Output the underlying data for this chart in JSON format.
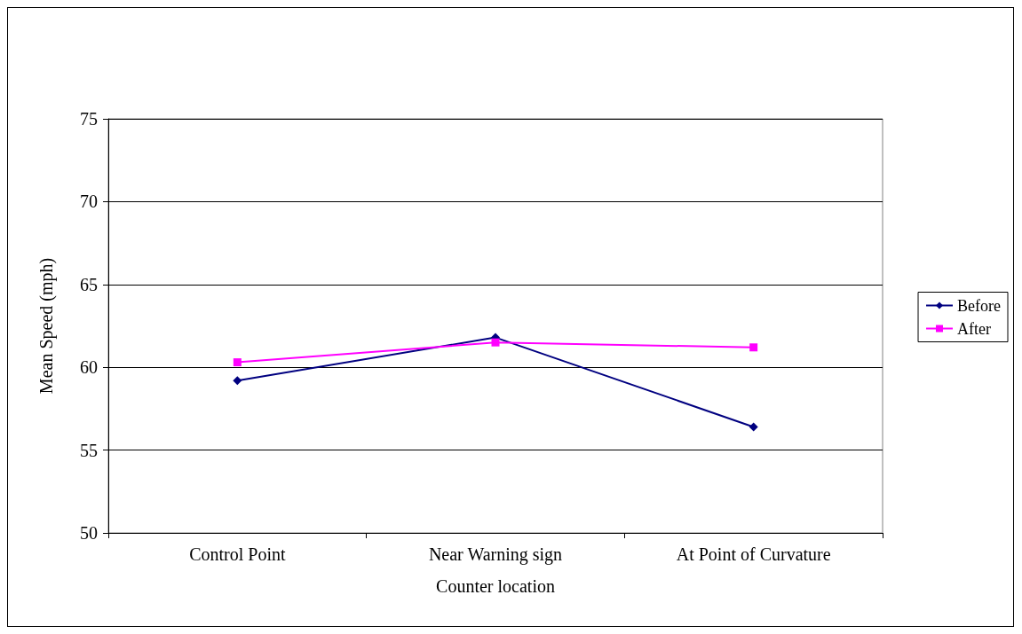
{
  "chart_data": {
    "type": "line",
    "xlabel": "Counter location",
    "ylabel": "Mean Speed (mph)",
    "categories": [
      "Control Point",
      "Near Warning sign",
      "At Point of Curvature"
    ],
    "series": [
      {
        "name": "Before",
        "color": "#000080",
        "marker": "diamond",
        "values": [
          59.2,
          61.8,
          56.4
        ]
      },
      {
        "name": "After",
        "color": "#ff00ff",
        "marker": "square",
        "values": [
          60.3,
          61.5,
          61.2
        ]
      }
    ],
    "ylim": [
      50,
      75
    ],
    "yticks": [
      50,
      55,
      60,
      65,
      70,
      75
    ],
    "grid": "y",
    "legend": "right"
  }
}
